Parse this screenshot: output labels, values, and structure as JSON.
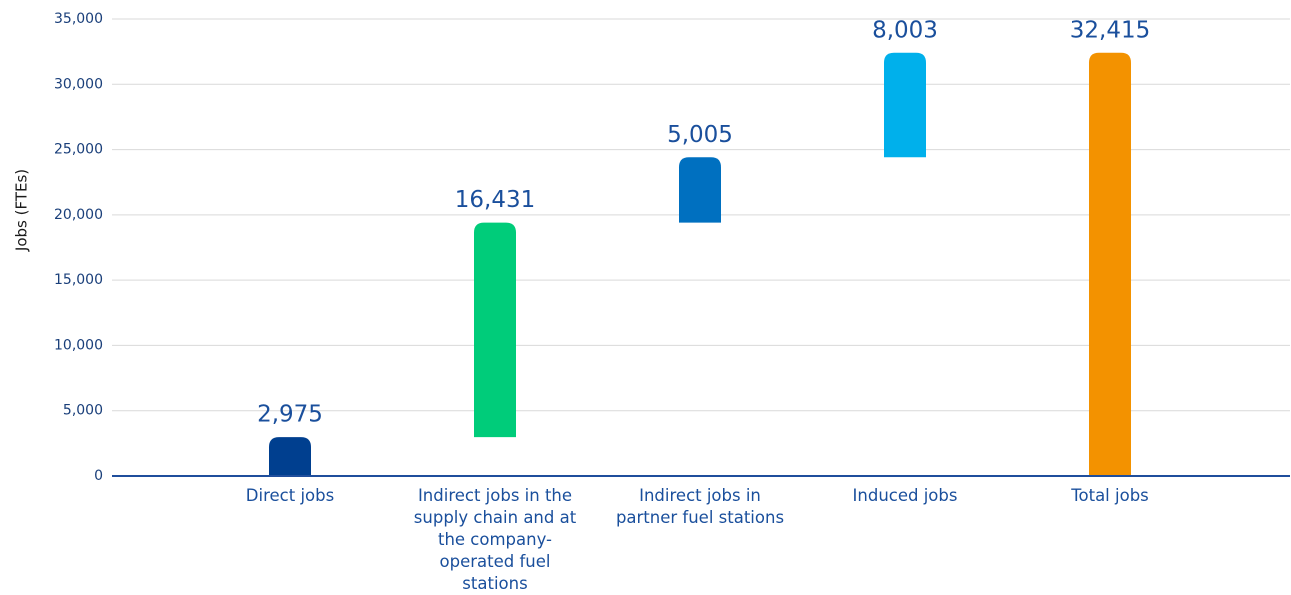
{
  "chart_data": {
    "type": "waterfall",
    "ylabel": "Jobs (FTEs)",
    "categories": [
      "Direct jobs",
      "Indirect jobs in the supply chain and at the company-operated fuel stations",
      "Indirect jobs in partner fuel stations",
      "Induced jobs",
      "Total jobs"
    ],
    "values": [
      2975,
      16431,
      5005,
      8003,
      32415
    ],
    "value_labels": [
      "2,975",
      "16,431",
      "5,005",
      "8,003",
      "32,415"
    ],
    "measure": [
      "relative",
      "relative",
      "relative",
      "relative",
      "total"
    ],
    "colors": [
      "#003f8f",
      "#00cc7a",
      "#0070c0",
      "#00b0eb",
      "#f39200"
    ],
    "ylim": [
      0,
      35000
    ],
    "yticks": [
      0,
      {
        "value": 5000,
        "label": "5,000"
      },
      {
        "value": 10000,
        "label": "10,000"
      },
      {
        "value": 15000,
        "label": "15,000"
      },
      {
        "value": 20000,
        "label": "20,000"
      },
      {
        "value": 25000,
        "label": "25,000"
      },
      {
        "value": 30000,
        "label": "30,000"
      },
      {
        "value": 35000,
        "label": "35,000"
      }
    ],
    "grid": true
  }
}
